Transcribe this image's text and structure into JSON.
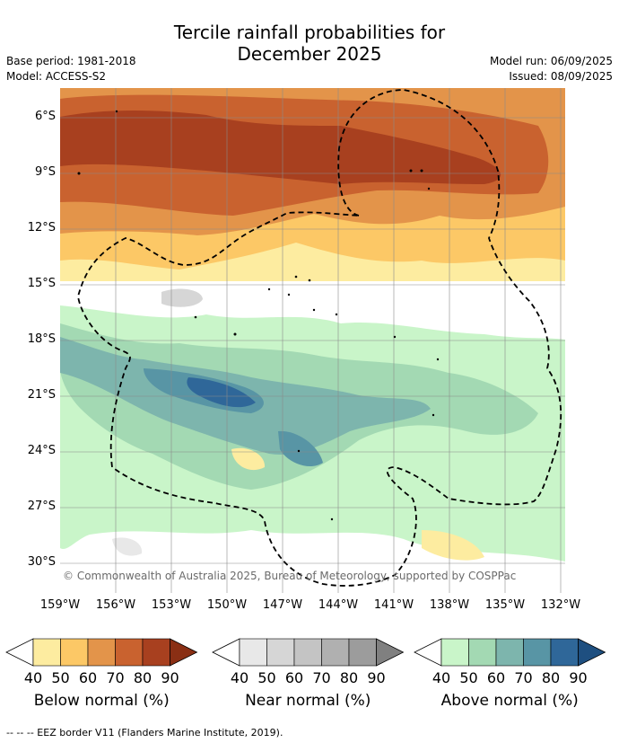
{
  "title": [
    "Tercile rainfall probabilities for",
    "December 2025"
  ],
  "meta_left": [
    "Base period: 1981-2018",
    "Model: ACCESS-S2"
  ],
  "meta_right": [
    "Model run: 06/09/2025",
    "Issued: 08/09/2025"
  ],
  "lat_labels": [
    "6°S",
    "9°S",
    "12°S",
    "15°S",
    "18°S",
    "21°S",
    "24°S",
    "27°S",
    "30°S"
  ],
  "lon_labels": [
    "159°W",
    "156°W",
    "153°W",
    "150°W",
    "147°W",
    "144°W",
    "141°W",
    "138°W",
    "135°W",
    "132°W"
  ],
  "copyright": "© Commonwealth of Australia 2025, Bureau of Meteorology, supported by COSPPac",
  "legends": [
    {
      "label": "Below normal (%)",
      "ticks": [
        "40",
        "50",
        "60",
        "70",
        "80",
        "90"
      ],
      "colors": [
        "#fdeca0",
        "#fcc866",
        "#e3944a",
        "#c9622f",
        "#a8401f",
        "#8a2f14"
      ]
    },
    {
      "label": "Near normal (%)",
      "ticks": [
        "40",
        "50",
        "60",
        "70",
        "80",
        "90"
      ],
      "colors": [
        "#e8e8e8",
        "#d6d6d6",
        "#c4c4c4",
        "#b0b0b0",
        "#9c9c9c",
        "#808080"
      ]
    },
    {
      "label": "Above normal (%)",
      "ticks": [
        "40",
        "50",
        "60",
        "70",
        "80",
        "90"
      ],
      "colors": [
        "#c9f5c9",
        "#a3d9b3",
        "#7db5ad",
        "#5895a5",
        "#2f6799",
        "#1e4f80"
      ]
    }
  ],
  "eez_note": "--  --  -- EEZ border V11 (Flanders Marine Institute, 2019)."
}
